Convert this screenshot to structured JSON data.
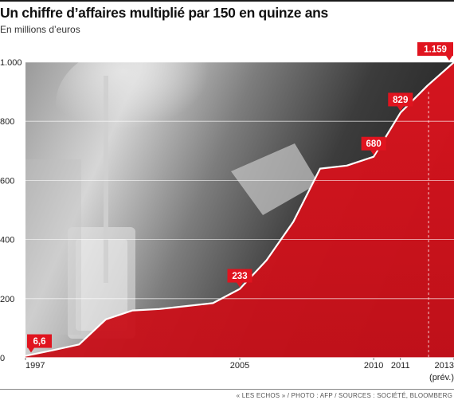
{
  "header": {
    "title": "Un chiffre d’affaires multiplié par 150 en quinze ans",
    "subtitle": "En millions d’euros"
  },
  "footer": {
    "source": "« LES ECHOS » / PHOTO : AFP / SOURCES : SOCIÉTÉ, BLOOMBERG"
  },
  "colors": {
    "area": "#d8141f",
    "line": "#ffffff",
    "label_bg": "#e0141f",
    "photo_dark": "#2a2a2a",
    "photo_light": "#bdbdbd"
  },
  "chart_data": {
    "type": "area",
    "title": "Un chiffre d’affaires multiplié par 150 en quinze ans",
    "subtitle": "En millions d’euros",
    "xlim": [
      1997,
      2013
    ],
    "ylim": [
      0,
      1000
    ],
    "yticks": [
      0,
      200,
      400,
      600,
      800,
      1000
    ],
    "ytick_labels": [
      "0",
      "200",
      "400",
      "600",
      "800",
      "1.000"
    ],
    "xticks": [
      {
        "x": 1997,
        "label": "1997"
      },
      {
        "x": 2005,
        "label": "2005"
      },
      {
        "x": 2010,
        "label": "2010"
      },
      {
        "x": 2011,
        "label": "2011"
      },
      {
        "x": 2013,
        "label": "2013"
      }
    ],
    "x_annotation": "(prév.)",
    "grid": true,
    "series": [
      {
        "x": [
          1997,
          1998,
          1999,
          2000,
          2001,
          2002,
          2003,
          2004,
          2005,
          2006,
          2007,
          2008,
          2009,
          2010,
          2011,
          2012,
          2013
        ],
        "values": [
          6.6,
          25,
          45,
          130,
          160,
          165,
          175,
          185,
          233,
          330,
          460,
          640,
          650,
          680,
          829,
          920,
          1159
        ]
      }
    ],
    "data_labels": [
      {
        "x": 1997,
        "value": 6.6,
        "label": "6,6"
      },
      {
        "x": 2005,
        "value": 233,
        "label": "233"
      },
      {
        "x": 2010,
        "value": 680,
        "label": "680"
      },
      {
        "x": 2011,
        "value": 829,
        "label": "829"
      },
      {
        "x": 2013,
        "value": 1159,
        "label": "1.159"
      }
    ]
  }
}
